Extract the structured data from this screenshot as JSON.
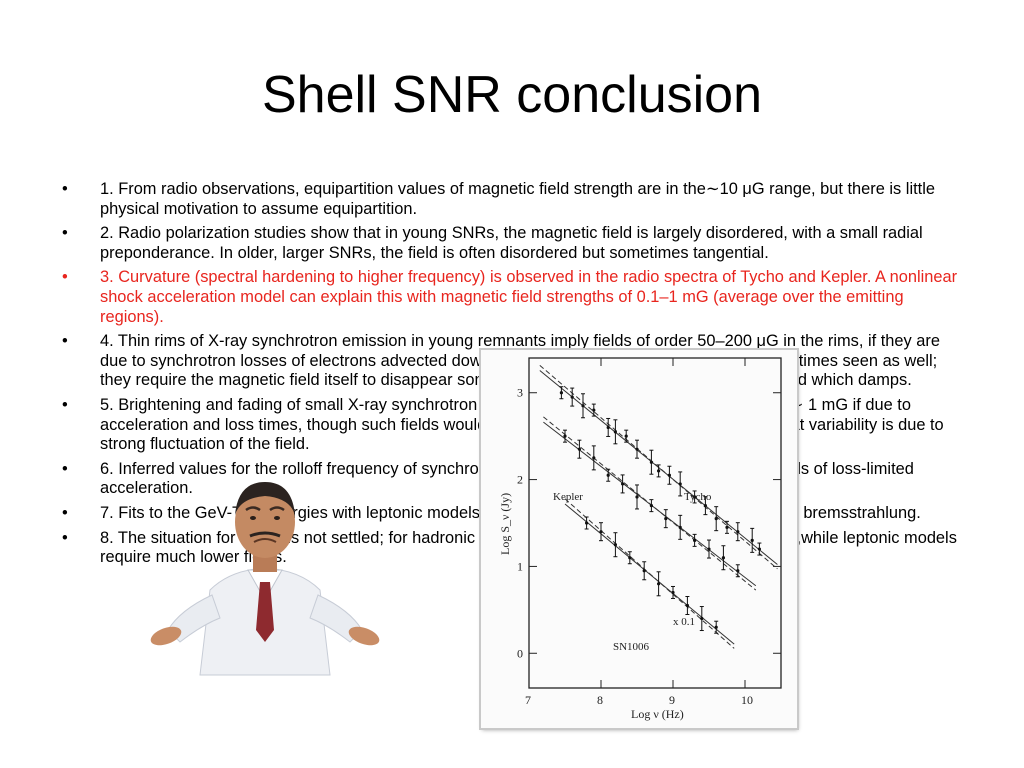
{
  "slide": {
    "title": "Shell SNR conclusion",
    "bullets": [
      {
        "text": "1. From radio observations, equipartition values of magnetic field strength are in the∼10 μG range, but there is little physical motivation to assume equipartition.",
        "highlight": false
      },
      {
        "text": "2. Radio polarization studies show that in young SNRs, the magnetic field is largely disordered, with a small radial preponderance. In older, larger SNRs, the field is often disordered but sometimes tangential.",
        "highlight": false
      },
      {
        "text": "3. Curvature (spectral hardening to higher frequency) is observed in the radio spectra of Tycho and Kepler. A nonlinear shock acceleration model can explain this with magnetic field strengths of 0.1–1 mG (average over the emitting regions).",
        "highlight": true
      },
      {
        "text": "4. Thin rims of X-ray synchrotron emission in young remnants imply fields of order 50–200 μG in the rims, if they are due to synchrotron losses of electrons advected downstream. However, thin radio rims are sometimes seen as well; they require the magnetic field itself to disappear somehow, presumably because it is a wave field which damps.",
        "highlight": false
      },
      {
        "text": "5. Brightening and fading of small X-ray synchrotron features in RX J1713 and Cas A require B ∼ 1 mG if due to acceleration and loss times, though such fields would need to be a factor of several areas, or that variability is due to strong fluctuation of the field.",
        "highlight": false
      },
      {
        "text": "6. Inferred values for the rolloff frequency of synchrotron emission are difficult to explain in models of loss-limited acceleration.",
        "highlight": false
      },
      {
        "text": "7. Fits to the GeV-TeV energies with leptonic models must avoid overproducing the X-ray flux via bremsstrahlung.",
        "highlight": false
      },
      {
        "text": "8. The situation for SNRs is not settled; for hadronic processes, the magnetic fields are ~100 μG,while leptonic models require much lower fields.",
        "highlight": false
      }
    ],
    "bullet_char": "•",
    "accent_color": "#e8251e"
  },
  "figure": {
    "ylabel": "Log S_ν (Jy)",
    "xlabel": "Log ν (Hz)",
    "annotations": {
      "kepler": "Kepler",
      "tycho": "Tycho",
      "sn1006": "SN1006",
      "scale": "x 0.1"
    }
  },
  "chart_data": {
    "type": "scatter",
    "xlabel": "Log ν (Hz)",
    "ylabel": "Log S_ν (Jy)",
    "xlim": [
      7,
      10.5
    ],
    "ylim": [
      -0.4,
      3.4
    ],
    "x_ticks": [
      7,
      8,
      9,
      10
    ],
    "y_ticks": [
      0,
      1,
      2,
      3
    ],
    "series": [
      {
        "name": "Tycho",
        "x": [
          7.45,
          7.6,
          7.75,
          7.9,
          8.1,
          8.2,
          8.35,
          8.5,
          8.7,
          8.8,
          8.95,
          9.1,
          9.3,
          9.45,
          9.6,
          9.75,
          9.9,
          10.1,
          10.2
        ],
        "y": [
          3.0,
          2.95,
          2.85,
          2.8,
          2.6,
          2.55,
          2.5,
          2.35,
          2.2,
          2.1,
          2.05,
          1.95,
          1.8,
          1.7,
          1.55,
          1.45,
          1.4,
          1.3,
          1.2
        ]
      },
      {
        "name": "Kepler",
        "x": [
          7.5,
          7.7,
          7.9,
          8.1,
          8.3,
          8.5,
          8.7,
          8.9,
          9.1,
          9.3,
          9.5,
          9.7,
          9.9
        ],
        "y": [
          2.5,
          2.35,
          2.25,
          2.05,
          1.95,
          1.8,
          1.7,
          1.55,
          1.45,
          1.3,
          1.2,
          1.1,
          0.95
        ]
      },
      {
        "name": "SN1006",
        "x": [
          7.8,
          8.0,
          8.2,
          8.4,
          8.6,
          8.8,
          9.0,
          9.2,
          9.4,
          9.6
        ],
        "y": [
          1.5,
          1.4,
          1.25,
          1.1,
          0.95,
          0.8,
          0.7,
          0.55,
          0.4,
          0.3
        ]
      }
    ],
    "grid": false
  }
}
